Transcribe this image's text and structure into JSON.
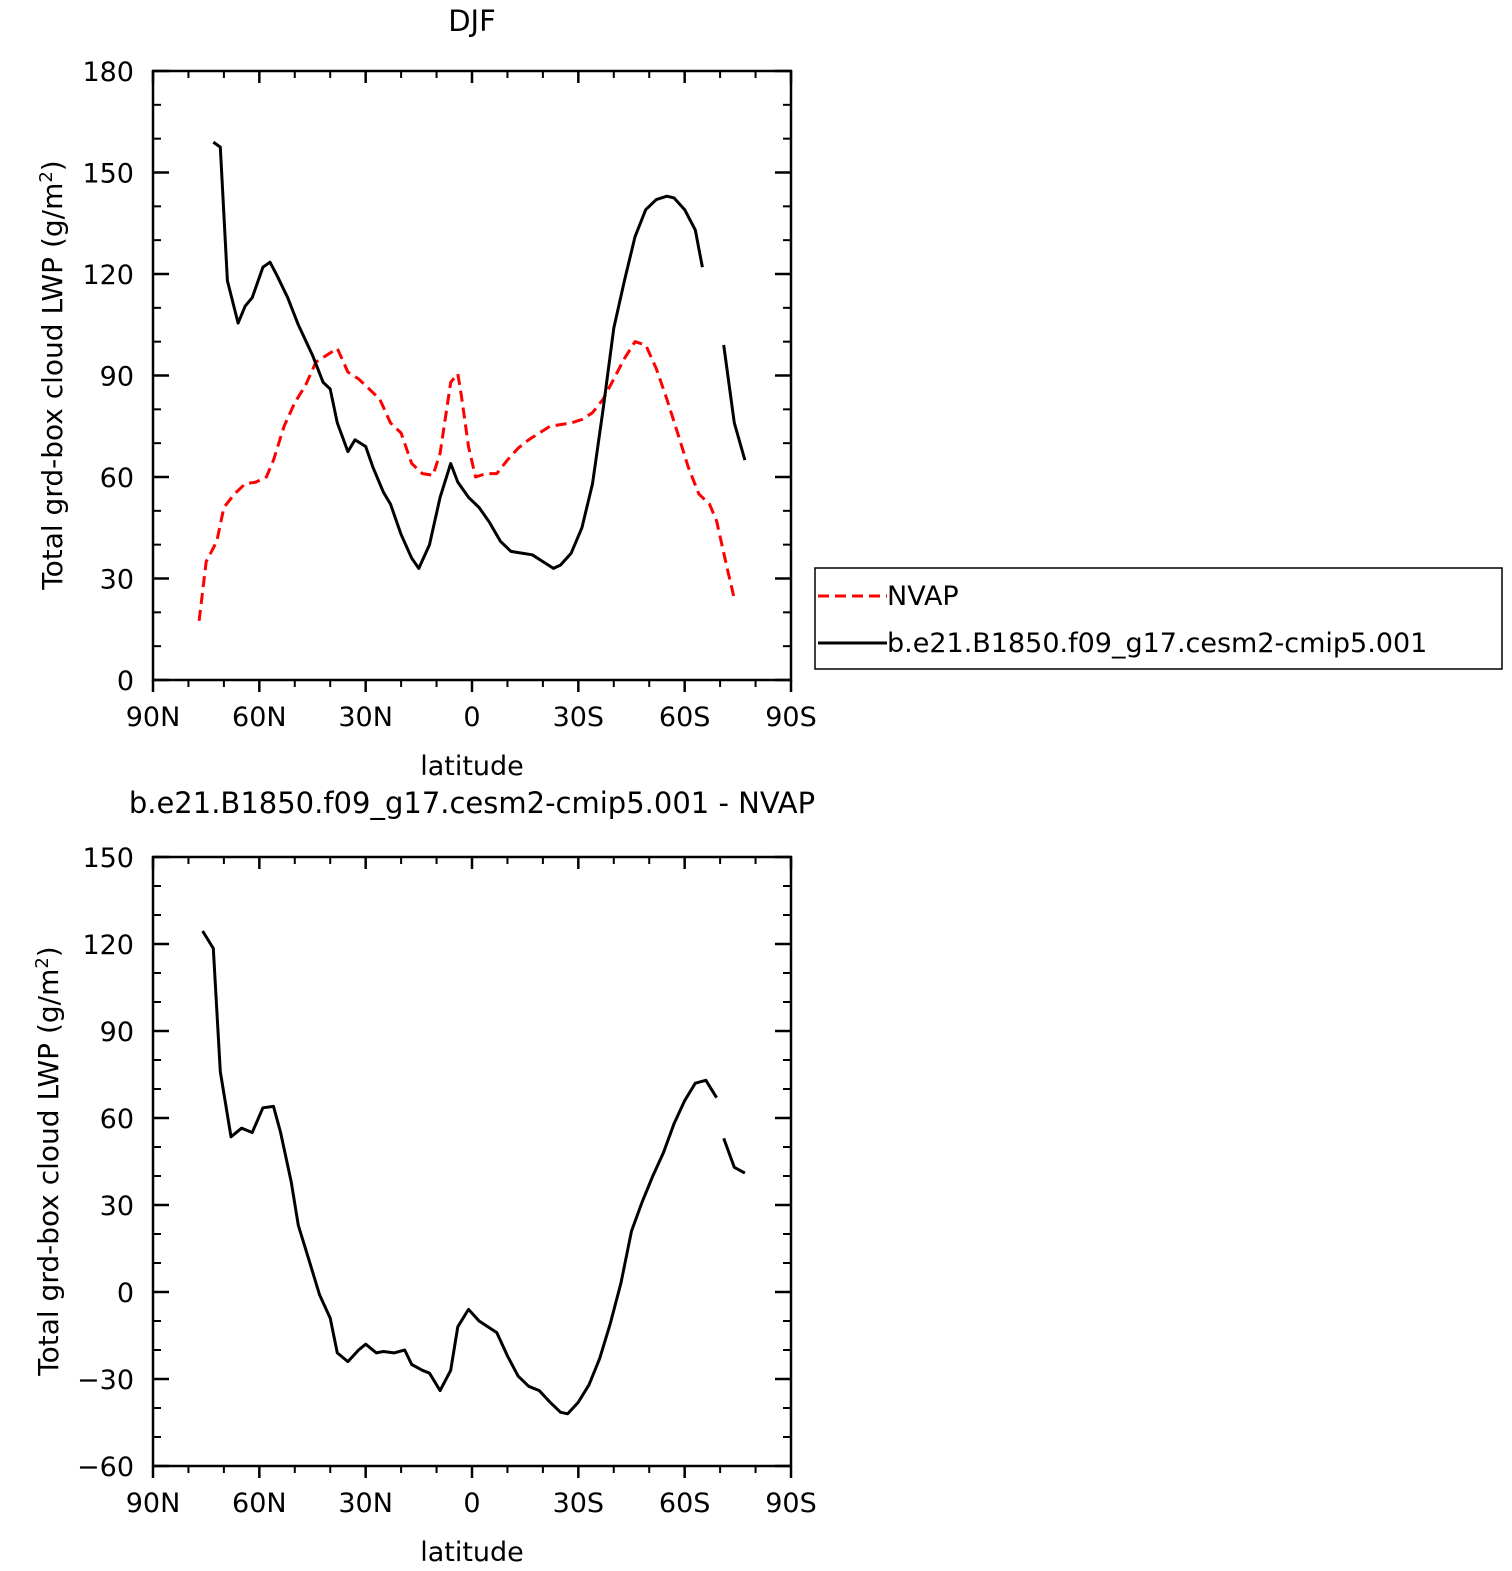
{
  "chart_data": [
    {
      "type": "line",
      "title": "DJF",
      "xlabel": "latitude",
      "ylabel": "Total grd-box cloud LWP (g/m",
      "ylabel_sup": "2",
      "ylabel_close": ")",
      "xlim": [
        90,
        -90
      ],
      "ylim": [
        0,
        180
      ],
      "xticks": [
        90,
        60,
        30,
        0,
        -30,
        -60,
        -90
      ],
      "xtick_labels": [
        "90N",
        "60N",
        "30N",
        "0",
        "30S",
        "60S",
        "90S"
      ],
      "yticks": [
        0,
        30,
        60,
        90,
        120,
        150,
        180
      ],
      "ytick_labels": [
        "0",
        "30",
        "60",
        "90",
        "120",
        "150",
        "180"
      ],
      "legend": {
        "position": "right",
        "entries": [
          "NVAP",
          "b.e21.B1850.f09_g17.cesm2-cmip5.001"
        ]
      },
      "series": [
        {
          "name": "NVAP",
          "color": "#ff0000",
          "dash": "dashed",
          "points": [
            [
              77,
              17.5
            ],
            [
              75,
              35
            ],
            [
              72,
              41
            ],
            [
              70,
              51
            ],
            [
              67,
              55
            ],
            [
              64,
              58
            ],
            [
              61,
              58.5
            ],
            [
              58,
              60
            ],
            [
              56,
              65
            ],
            [
              53,
              75
            ],
            [
              50,
              82
            ],
            [
              47,
              87
            ],
            [
              44,
              94
            ],
            [
              41,
              96
            ],
            [
              38,
              98
            ],
            [
              35,
              91
            ],
            [
              32,
              89
            ],
            [
              29,
              86
            ],
            [
              26,
              83
            ],
            [
              23,
              76
            ],
            [
              20,
              73
            ],
            [
              17,
              64
            ],
            [
              14,
              61
            ],
            [
              11,
              60.5
            ],
            [
              9,
              67
            ],
            [
              6,
              88
            ],
            [
              4,
              90.5
            ],
            [
              3,
              84
            ],
            [
              1,
              69
            ],
            [
              -1,
              60
            ],
            [
              -4,
              61
            ],
            [
              -7,
              61
            ],
            [
              -10,
              65
            ],
            [
              -13,
              68.5
            ],
            [
              -16,
              71
            ],
            [
              -19,
              73
            ],
            [
              -22,
              75
            ],
            [
              -25,
              75.5
            ],
            [
              -28,
              76
            ],
            [
              -31,
              77
            ],
            [
              -34,
              79
            ],
            [
              -37,
              83
            ],
            [
              -40,
              89
            ],
            [
              -43,
              95
            ],
            [
              -46,
              100
            ],
            [
              -49,
              99
            ],
            [
              -52,
              92
            ],
            [
              -55,
              83
            ],
            [
              -58,
              73
            ],
            [
              -61,
              63
            ],
            [
              -64,
              55
            ],
            [
              -67,
              52
            ],
            [
              -69,
              47
            ],
            [
              -72,
              33
            ],
            [
              -74,
              24
            ]
          ]
        },
        {
          "name": "b.e21.B1850.f09_g17.cesm2-cmip5.001",
          "color": "#000000",
          "dash": "solid",
          "segments": [
            [
              [
                73,
                159
              ],
              [
                71,
                157.5
              ],
              [
                69,
                118
              ],
              [
                66,
                105.5
              ],
              [
                64,
                110.5
              ],
              [
                62,
                113
              ],
              [
                59,
                122
              ],
              [
                57,
                123.5
              ],
              [
                55,
                119.5
              ],
              [
                52,
                113
              ],
              [
                49,
                105
              ],
              [
                45,
                96
              ],
              [
                42,
                88
              ],
              [
                40,
                86
              ],
              [
                38,
                76
              ],
              [
                35,
                67.5
              ],
              [
                33,
                71
              ],
              [
                30,
                69
              ],
              [
                28,
                63
              ],
              [
                25,
                55.5
              ],
              [
                23,
                52
              ],
              [
                20,
                43
              ],
              [
                17,
                36
              ],
              [
                15,
                33
              ],
              [
                12,
                40
              ],
              [
                9,
                54
              ],
              [
                6,
                64
              ],
              [
                4,
                58.5
              ],
              [
                1,
                54
              ],
              [
                -2,
                51
              ],
              [
                -5,
                46.5
              ],
              [
                -8,
                41
              ],
              [
                -11,
                38
              ],
              [
                -14,
                37.5
              ],
              [
                -17,
                37
              ],
              [
                -20,
                35
              ],
              [
                -23,
                33
              ],
              [
                -25,
                34
              ],
              [
                -28,
                37.5
              ],
              [
                -31,
                45
              ],
              [
                -34,
                58
              ],
              [
                -37,
                80
              ],
              [
                -40,
                104
              ],
              [
                -43,
                118
              ],
              [
                -46,
                131
              ],
              [
                -49,
                139
              ],
              [
                -52,
                142
              ],
              [
                -55,
                143
              ],
              [
                -57,
                142.5
              ],
              [
                -60,
                139
              ],
              [
                -63,
                133
              ],
              [
                -65,
                122
              ]
            ],
            [
              [
                -71,
                99
              ],
              [
                -74,
                76
              ],
              [
                -77,
                65
              ]
            ]
          ]
        }
      ]
    },
    {
      "type": "line",
      "title": "b.e21.B1850.f09_g17.cesm2-cmip5.001 - NVAP",
      "xlabel": "latitude",
      "ylabel": "Total grd-box cloud LWP (g/m",
      "ylabel_sup": "2",
      "ylabel_close": ")",
      "xlim": [
        90,
        -90
      ],
      "ylim": [
        -60,
        150
      ],
      "xticks": [
        90,
        60,
        30,
        0,
        -30,
        -60,
        -90
      ],
      "xtick_labels": [
        "90N",
        "60N",
        "30N",
        "0",
        "30S",
        "60S",
        "90S"
      ],
      "yticks": [
        -60,
        -30,
        0,
        30,
        60,
        90,
        120,
        150
      ],
      "ytick_labels": [
        "−60",
        "−30",
        "0",
        "30",
        "60",
        "90",
        "120",
        "150"
      ],
      "series": [
        {
          "color": "#000000",
          "dash": "solid",
          "segments": [
            [
              [
                76,
                124.5
              ],
              [
                73,
                118.5
              ],
              [
                71,
                76
              ],
              [
                68,
                53.5
              ],
              [
                65,
                56.5
              ],
              [
                62,
                55
              ],
              [
                59,
                63.5
              ],
              [
                56,
                64
              ],
              [
                54,
                55
              ],
              [
                51,
                38
              ],
              [
                49,
                23
              ],
              [
                46,
                11
              ],
              [
                43,
                -1
              ],
              [
                40,
                -9
              ],
              [
                38,
                -21
              ],
              [
                35,
                -24
              ],
              [
                32,
                -20
              ],
              [
                30,
                -18
              ],
              [
                27,
                -21
              ],
              [
                25,
                -20.5
              ],
              [
                22,
                -21
              ],
              [
                19,
                -20
              ],
              [
                17,
                -25
              ],
              [
                14,
                -27
              ],
              [
                12,
                -28
              ],
              [
                9,
                -34
              ],
              [
                6,
                -27
              ],
              [
                4,
                -12
              ],
              [
                1,
                -6
              ],
              [
                -2,
                -10
              ],
              [
                -7,
                -14
              ],
              [
                -10,
                -22
              ],
              [
                -13,
                -29
              ],
              [
                -16,
                -32.5
              ],
              [
                -19,
                -34
              ],
              [
                -22,
                -38
              ],
              [
                -25,
                -41.5
              ],
              [
                -27,
                -42
              ],
              [
                -30,
                -38
              ],
              [
                -33,
                -32
              ],
              [
                -36,
                -23
              ],
              [
                -39,
                -11
              ],
              [
                -42,
                3
              ],
              [
                -45,
                21
              ],
              [
                -48,
                31
              ],
              [
                -51,
                40
              ],
              [
                -54,
                48
              ],
              [
                -57,
                58
              ],
              [
                -60,
                66
              ],
              [
                -63,
                72
              ],
              [
                -66,
                73
              ],
              [
                -69,
                67
              ]
            ],
            [
              [
                -71,
                53
              ],
              [
                -74,
                43
              ],
              [
                -77,
                41
              ]
            ]
          ]
        }
      ]
    }
  ]
}
